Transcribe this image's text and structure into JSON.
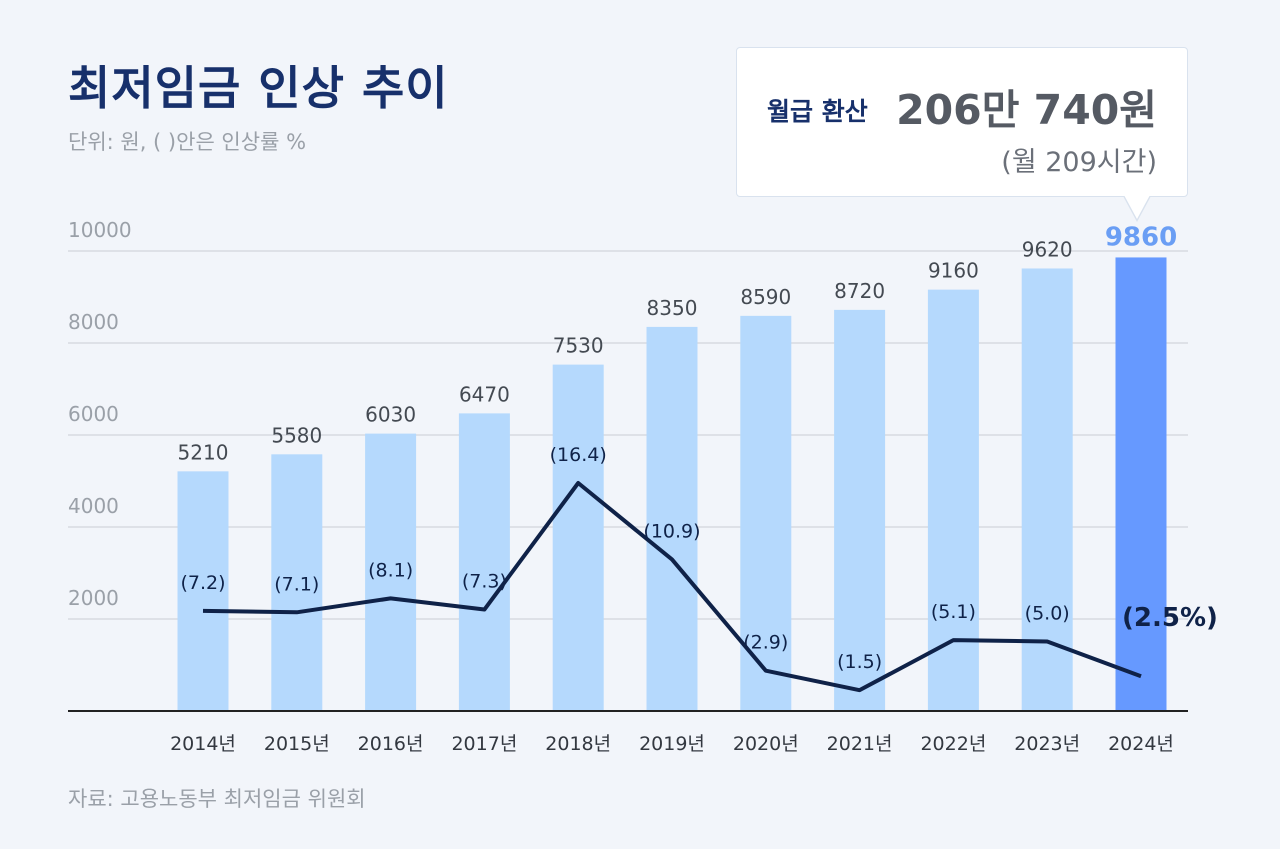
{
  "header": {
    "title": "최저임금 인상 추이",
    "subtitle": "단위: 원, ( )안은 인상률 %"
  },
  "callout": {
    "label": "월급 환산",
    "value": "206만 740원",
    "note": "(월 209시간)"
  },
  "source": "자료: 고용노동부 최저임금 위원회",
  "colors": {
    "bar": "#b5d9fd",
    "highlight_bar": "#6699ff",
    "highlight_label": "#6a9ef4",
    "line": "#0f2248",
    "grid": "#c9cdd4",
    "axis": "#222222",
    "title": "#17306b"
  },
  "chart_data": {
    "type": "bar",
    "categories": [
      "2014년",
      "2015년",
      "2016년",
      "2017년",
      "2018년",
      "2019년",
      "2020년",
      "2021년",
      "2022년",
      "2023년",
      "2024년"
    ],
    "series": [
      {
        "values": [
          5210,
          5580,
          6030,
          6470,
          7530,
          8350,
          8590,
          8720,
          9160,
          9620,
          9860
        ],
        "labels": [
          "5210",
          "5580",
          "6030",
          "6470",
          "7530",
          "8350",
          "8590",
          "8720",
          "9160",
          "9620",
          "9860"
        ]
      },
      {
        "type": "line",
        "values": [
          7.2,
          7.1,
          8.1,
          7.3,
          16.4,
          10.9,
          2.9,
          1.5,
          5.1,
          5.0,
          2.5
        ],
        "labels": [
          "(7.2)",
          "(7.1)",
          "(8.1)",
          "(7.3)",
          "(16.4)",
          "(10.9)",
          "(2.9)",
          "(1.5)",
          "(5.1)",
          "(5.0)",
          "(2.5%)"
        ]
      }
    ],
    "y_ticks": [
      "2000",
      "4000",
      "6000",
      "8000",
      "10000"
    ],
    "y_tick_values": [
      2000,
      4000,
      6000,
      8000,
      10000
    ],
    "ylim": [
      0,
      10000
    ],
    "highlight_index": 10,
    "grid": true
  }
}
